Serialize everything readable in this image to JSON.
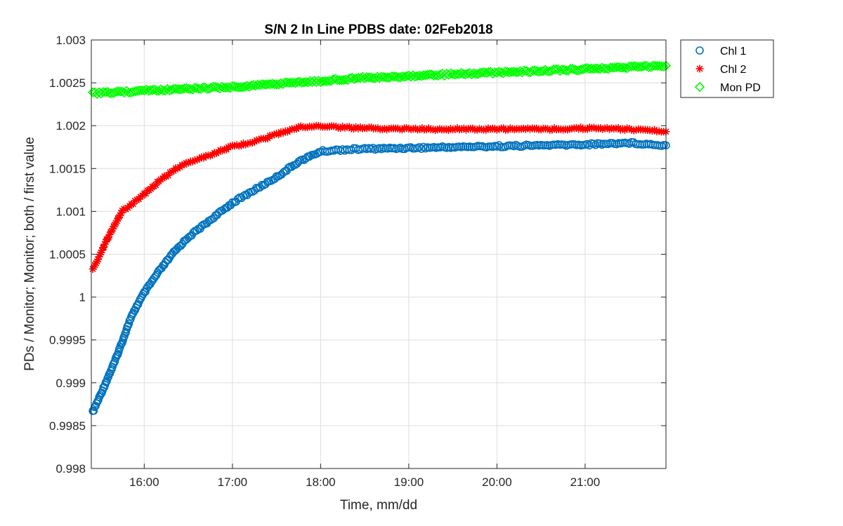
{
  "chart_data": {
    "type": "scatter",
    "title": "S/N 2 In Line PDBS date: 02Feb2018",
    "xlabel": "Time, mm/dd",
    "ylabel": "PDs / Monitor; Monitor; both / first value",
    "xlim": [
      "15:24",
      "21:55"
    ],
    "ylim": [
      0.998,
      1.003
    ],
    "x_ticks": [
      "16:00",
      "17:00",
      "18:00",
      "19:00",
      "20:00",
      "21:00"
    ],
    "y_ticks": [
      "0.998",
      "0.9985",
      "0.999",
      "0.9995",
      "1",
      "1.0005",
      "1.001",
      "1.0015",
      "1.002",
      "1.0025",
      "1.003"
    ],
    "grid": true,
    "legend_position": "outside-top-right",
    "series": [
      {
        "name": "Chl 1",
        "marker": "circle",
        "color": "#0072BD",
        "points": [
          [
            "15:25",
            0.99866
          ],
          [
            "15:30",
            0.99885
          ],
          [
            "15:35",
            0.99905
          ],
          [
            "15:40",
            0.99925
          ],
          [
            "15:45",
            0.99948
          ],
          [
            "15:50",
            0.99972
          ],
          [
            "15:55",
            0.9999
          ],
          [
            "16:00",
            1.00005
          ],
          [
            "16:10",
            1.0003
          ],
          [
            "16:20",
            1.00052
          ],
          [
            "16:30",
            1.0007
          ],
          [
            "16:45",
            1.0009
          ],
          [
            "17:00",
            1.0011
          ],
          [
            "17:15",
            1.00125
          ],
          [
            "17:30",
            1.0014
          ],
          [
            "17:45",
            1.00158
          ],
          [
            "18:00",
            1.0017
          ],
          [
            "18:15",
            1.00172
          ],
          [
            "18:30",
            1.00173
          ],
          [
            "19:00",
            1.00174
          ],
          [
            "19:30",
            1.00175
          ],
          [
            "20:00",
            1.00176
          ],
          [
            "20:30",
            1.00177
          ],
          [
            "21:00",
            1.00178
          ],
          [
            "21:30",
            1.0018
          ],
          [
            "21:55",
            1.00177
          ]
        ]
      },
      {
        "name": "Chl 2",
        "marker": "asterisk",
        "color": "#FF0000",
        "points": [
          [
            "15:25",
            1.00033
          ],
          [
            "15:30",
            1.0005
          ],
          [
            "15:35",
            1.00068
          ],
          [
            "15:40",
            1.00085
          ],
          [
            "15:45",
            1.001
          ],
          [
            "15:55",
            1.00113
          ],
          [
            "16:00",
            1.0012
          ],
          [
            "16:10",
            1.00135
          ],
          [
            "16:20",
            1.00148
          ],
          [
            "16:30",
            1.00157
          ],
          [
            "16:45",
            1.00166
          ],
          [
            "17:00",
            1.00176
          ],
          [
            "17:15",
            1.00181
          ],
          [
            "17:30",
            1.0019
          ],
          [
            "17:45",
            1.00198
          ],
          [
            "18:00",
            1.002
          ],
          [
            "18:15",
            1.00198
          ],
          [
            "18:30",
            1.00197
          ],
          [
            "19:00",
            1.00196
          ],
          [
            "19:30",
            1.00196
          ],
          [
            "20:00",
            1.00196
          ],
          [
            "20:30",
            1.00196
          ],
          [
            "21:00",
            1.00197
          ],
          [
            "21:30",
            1.00196
          ],
          [
            "21:55",
            1.00193
          ]
        ]
      },
      {
        "name": "Mon PD",
        "marker": "diamond",
        "color": "#00FF00",
        "points": [
          [
            "15:25",
            1.00238
          ],
          [
            "15:45",
            1.00239
          ],
          [
            "16:00",
            1.00241
          ],
          [
            "16:30",
            1.00243
          ],
          [
            "17:00",
            1.00245
          ],
          [
            "17:30",
            1.00249
          ],
          [
            "18:00",
            1.00252
          ],
          [
            "18:30",
            1.00256
          ],
          [
            "19:00",
            1.00258
          ],
          [
            "19:30",
            1.0026
          ],
          [
            "20:00",
            1.00262
          ],
          [
            "20:30",
            1.00264
          ],
          [
            "21:00",
            1.00266
          ],
          [
            "21:30",
            1.00268
          ],
          [
            "21:55",
            1.0027
          ]
        ]
      }
    ]
  }
}
